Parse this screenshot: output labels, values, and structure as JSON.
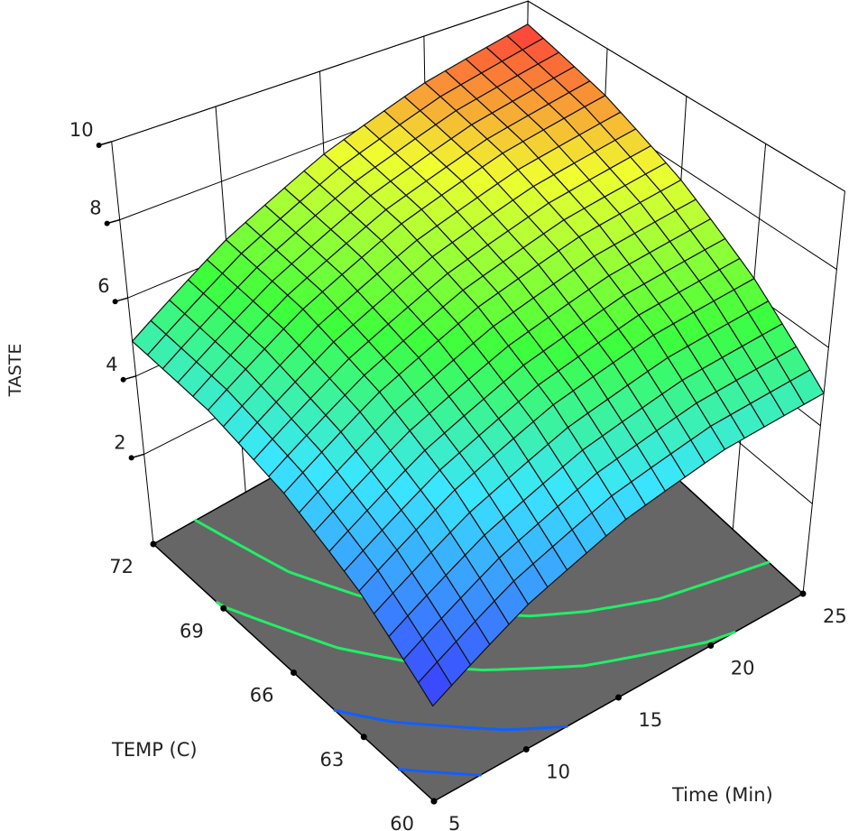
{
  "chart_data": {
    "type": "surface",
    "title": "",
    "x_axis": {
      "label": "TEMP (C)",
      "ticks": [
        "60",
        "63",
        "66",
        "69",
        "72"
      ],
      "range": [
        60,
        72
      ]
    },
    "y_axis": {
      "label": "Time (Min)",
      "ticks": [
        "5",
        "10",
        "15",
        "20",
        "25"
      ],
      "range": [
        5,
        25
      ]
    },
    "z_axis": {
      "label": "TASTE",
      "ticks": [
        "2",
        "4",
        "6",
        "8",
        "10"
      ],
      "range": [
        0,
        10
      ]
    },
    "grid_x_values": [
      60,
      63,
      66,
      69,
      72
    ],
    "grid_y_values": [
      5,
      10,
      15,
      20,
      25
    ],
    "z_values_by_temp_rows": [
      [
        1.79,
        3.0,
        3.91,
        4.52,
        4.83
      ],
      [
        3.02,
        4.31,
        5.31,
        6.0,
        6.4
      ],
      [
        3.94,
        5.32,
        6.4,
        7.18,
        7.66
      ],
      [
        4.57,
        6.03,
        7.2,
        8.06,
        8.63
      ],
      [
        4.89,
        6.44,
        7.69,
        8.64,
        9.29
      ]
    ],
    "floor_contour_levels": [
      2.4,
      3.4,
      4.6,
      5.6
    ],
    "colormap": [
      "#3a3aff",
      "#3ae6ff",
      "#3cff3c",
      "#f0ff30",
      "#ff3a3a"
    ],
    "floor_color": "#666666",
    "walls_grid": true
  }
}
